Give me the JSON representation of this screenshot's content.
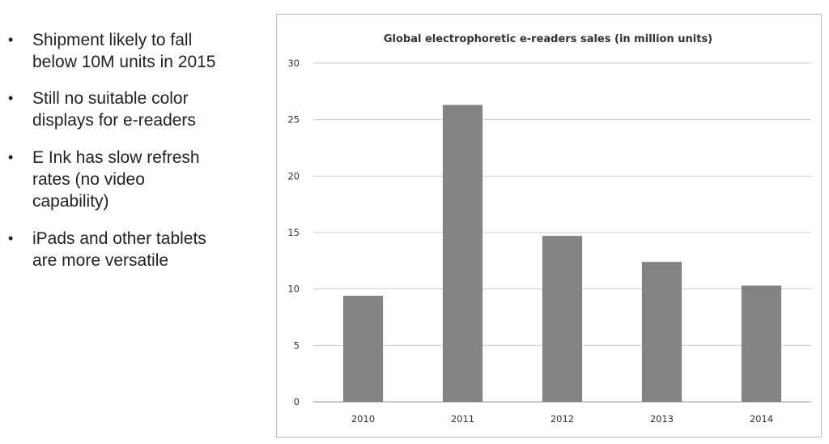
{
  "bullets": [
    "Shipment likely to fall below 10M units in 2015",
    "Still no suitable color displays for e-readers",
    "E Ink has slow refresh rates (no video capability)",
    "iPads and other tablets are more versatile"
  ],
  "bullet_lines": [
    [
      "Shipment likely to fall",
      "below 10M units in 2015"
    ],
    [
      "Still no suitable color",
      "displays for e-readers"
    ],
    [
      "E Ink has slow refresh",
      "rates (no video",
      "capability)"
    ],
    [
      "iPads and other tablets",
      "are more versatile"
    ]
  ],
  "colors": {
    "bar": "#838383",
    "grid": "#cfcfcf",
    "axis": "#9a9a9a"
  },
  "chart_data": {
    "type": "bar",
    "title": "Global electrophoretic e-readers sales (in million units)",
    "categories": [
      "2010",
      "2011",
      "2012",
      "2013",
      "2014"
    ],
    "values": [
      9.4,
      26.3,
      14.7,
      12.4,
      10.3
    ],
    "xlabel": "",
    "ylabel": "",
    "ylim": [
      0,
      30
    ],
    "yticks": [
      0,
      5,
      10,
      15,
      20,
      25,
      30
    ],
    "grid": true,
    "legend": "none"
  }
}
